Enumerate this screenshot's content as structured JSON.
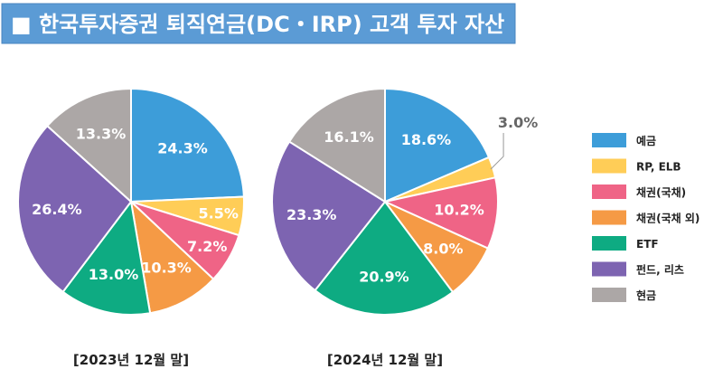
{
  "title": "■ 한국투자증권 퇴직연금(DC・IRP) 고객 투자 자산",
  "colors": {
    "title_bg": "#5b9bd5",
    "예금": "#3d9dd9",
    "RP, ELB": "#ffcd57",
    "채권(국채)": "#ef6486",
    "채권(국채 외)": "#f59a45",
    "ETF": "#0eab82",
    "펀드, 리츠": "#7d64b1",
    "현금": "#aca7a6"
  },
  "chart_data": [
    {
      "type": "pie",
      "title": "[2023년 12월 말]",
      "categories": [
        "예금",
        "RP, ELB",
        "채권(국채)",
        "채권(국채 외)",
        "ETF",
        "펀드, 리츠",
        "현금"
      ],
      "values": [
        24.3,
        5.5,
        7.2,
        10.3,
        13.0,
        26.4,
        13.3
      ],
      "labels": [
        "24.3%",
        "5.5%",
        "7.2%",
        "10.3%",
        "13.0%",
        "26.4%",
        "13.3%"
      ]
    },
    {
      "type": "pie",
      "title": "[2024년 12월 말]",
      "categories": [
        "예금",
        "RP, ELB",
        "채권(국채)",
        "채권(국채 외)",
        "ETF",
        "펀드, 리츠",
        "현금"
      ],
      "values": [
        18.6,
        3.0,
        10.2,
        8.0,
        20.9,
        23.3,
        16.1
      ],
      "labels": [
        "18.6%",
        "3.0%",
        "10.2%",
        "8.0%",
        "20.9%",
        "23.3%",
        "16.1%"
      ]
    }
  ],
  "legend": {
    "placement": "right",
    "items": [
      "예금",
      "RP, ELB",
      "채권(국채)",
      "채권(국채 외)",
      "ETF",
      "펀드, 리츠",
      "현금"
    ]
  }
}
